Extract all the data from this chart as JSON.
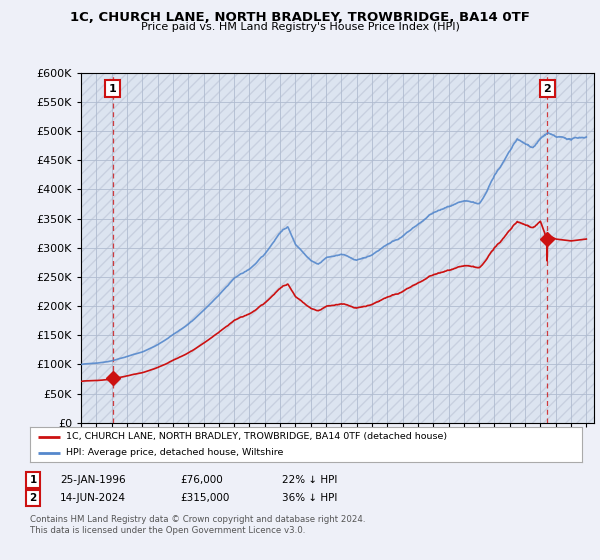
{
  "title": "1C, CHURCH LANE, NORTH BRADLEY, TROWBRIDGE, BA14 0TF",
  "subtitle": "Price paid vs. HM Land Registry's House Price Index (HPI)",
  "ylim": [
    0,
    600000
  ],
  "xlim_start": 1994.0,
  "xlim_end": 2027.5,
  "ytick_step": 50000,
  "bg_color": "#eef0f8",
  "plot_bg": "#dce4f0",
  "hatch_color": "#c8d0e0",
  "grid_color": "#b0bcd0",
  "hpi_color": "#5588cc",
  "price_color": "#cc1111",
  "annotation_box_color": "#cc1111",
  "sale1_x": 1996.07,
  "sale1_y": 76000,
  "sale1_label": "1",
  "sale2_x": 2024.45,
  "sale2_y": 315000,
  "sale2_label": "2",
  "legend_line1": "1C, CHURCH LANE, NORTH BRADLEY, TROWBRIDGE, BA14 0TF (detached house)",
  "legend_line2": "HPI: Average price, detached house, Wiltshire",
  "footer1": "Contains HM Land Registry data © Crown copyright and database right 2024.",
  "footer2": "This data is licensed under the Open Government Licence v3.0.",
  "table_row1": [
    "1",
    "25-JAN-1996",
    "£76,000",
    "22% ↓ HPI"
  ],
  "table_row2": [
    "2",
    "14-JUN-2024",
    "£315,000",
    "36% ↓ HPI"
  ]
}
